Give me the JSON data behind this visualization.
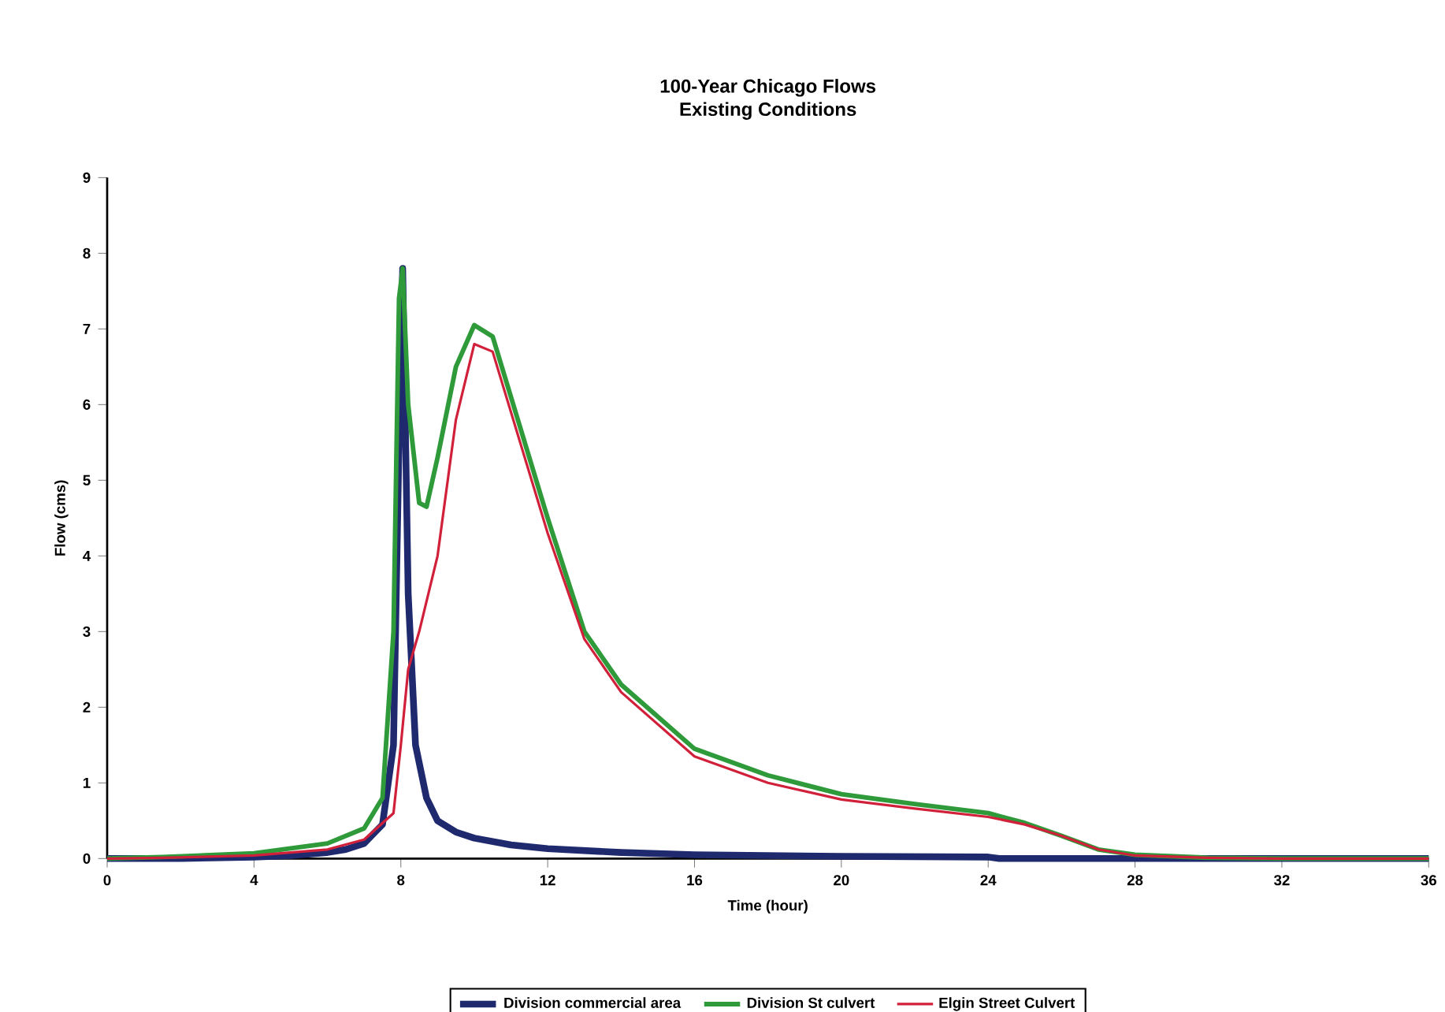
{
  "chart_data": {
    "type": "line",
    "title": "100-Year Chicago Flows",
    "subtitle": "Existing Conditions",
    "xlabel": "Time (hour)",
    "ylabel": "Flow (cms)",
    "xlim": [
      0,
      36
    ],
    "xticks": [
      0,
      4,
      8,
      12,
      16,
      20,
      24,
      28,
      32,
      36
    ],
    "ylim": [
      0,
      9
    ],
    "yticks": [
      0,
      1,
      2,
      3,
      4,
      5,
      6,
      7,
      8,
      9
    ],
    "grid": false,
    "legend": "bottom",
    "marker": "none",
    "line_style": "solid",
    "series": [
      {
        "name": "Division commercial area",
        "color": "#1f2a6e",
        "x": [
          0,
          2,
          4,
          5,
          6,
          6.5,
          7,
          7.5,
          7.8,
          7.95,
          8.05,
          8.2,
          8.4,
          8.7,
          9,
          9.5,
          10,
          11,
          12,
          14,
          16,
          20,
          24,
          24.3,
          28,
          32,
          36
        ],
        "values": [
          0,
          0,
          0.02,
          0.04,
          0.08,
          0.12,
          0.2,
          0.45,
          1.5,
          5.5,
          7.8,
          3.5,
          1.5,
          0.8,
          0.5,
          0.35,
          0.27,
          0.18,
          0.13,
          0.08,
          0.05,
          0.03,
          0.02,
          0,
          0,
          0,
          0
        ]
      },
      {
        "name": "Division St culvert",
        "color": "#2e9a3a",
        "x": [
          0,
          1.5,
          4,
          6,
          7,
          7.5,
          7.8,
          7.95,
          8.05,
          8.2,
          8.5,
          8.7,
          9,
          9.5,
          10,
          10.5,
          11,
          12,
          13,
          14,
          16,
          18,
          20,
          22,
          24,
          25,
          26,
          27,
          28,
          30,
          32,
          36
        ],
        "values": [
          0,
          0.02,
          0.07,
          0.2,
          0.4,
          0.8,
          3,
          7.4,
          7.8,
          6,
          4.7,
          4.65,
          5.3,
          6.5,
          7.05,
          6.9,
          6.1,
          4.5,
          3.0,
          2.3,
          1.45,
          1.1,
          0.85,
          0.72,
          0.6,
          0.47,
          0.3,
          0.12,
          0.05,
          0.01,
          0,
          0
        ]
      },
      {
        "name": "Elgin Street Culvert",
        "color": "#d0203a",
        "x": [
          0,
          1.5,
          4,
          6,
          7,
          7.8,
          8,
          8.2,
          8.5,
          9,
          9.5,
          10,
          10.5,
          11,
          12,
          13,
          14,
          16,
          18,
          20,
          22,
          24,
          25,
          26,
          27,
          28,
          30,
          32,
          36
        ],
        "values": [
          0,
          0.01,
          0.04,
          0.12,
          0.25,
          0.6,
          1.5,
          2.5,
          3.0,
          4.0,
          5.8,
          6.8,
          6.7,
          5.9,
          4.3,
          2.9,
          2.2,
          1.35,
          1.0,
          0.78,
          0.66,
          0.55,
          0.45,
          0.3,
          0.12,
          0.04,
          0.01,
          0,
          0
        ]
      }
    ]
  }
}
